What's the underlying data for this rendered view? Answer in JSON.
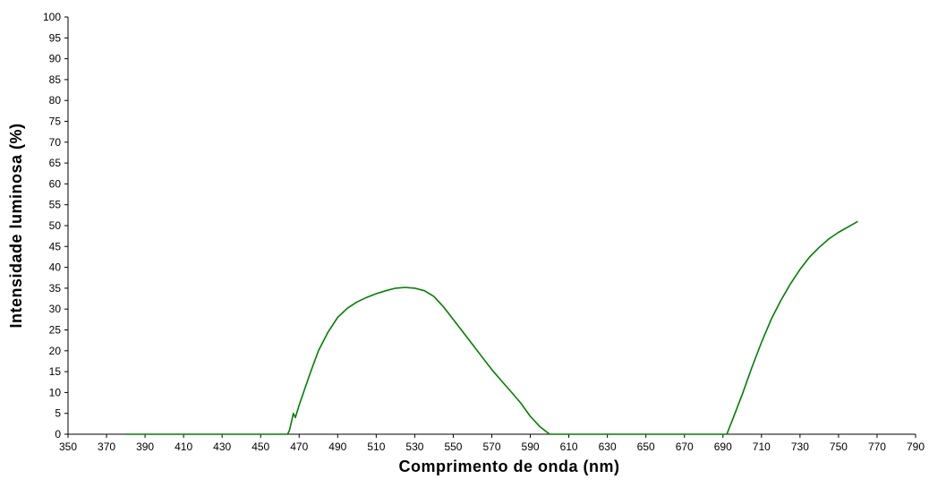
{
  "chart_data": {
    "type": "line",
    "title": "",
    "xlabel": "Comprimento de onda (nm)",
    "ylabel": "Intensidade luminosa (%)",
    "xlim": [
      350,
      790
    ],
    "ylim": [
      0,
      100
    ],
    "x_ticks": [
      350,
      370,
      390,
      410,
      430,
      450,
      470,
      490,
      510,
      530,
      550,
      570,
      590,
      610,
      630,
      650,
      670,
      690,
      710,
      730,
      750,
      770,
      790
    ],
    "y_ticks": [
      0,
      5,
      10,
      15,
      20,
      25,
      30,
      35,
      40,
      45,
      50,
      55,
      60,
      65,
      70,
      75,
      80,
      85,
      90,
      95,
      100
    ],
    "grid": false,
    "legend": "none",
    "series": [
      {
        "color": "#008000",
        "x": [
          380,
          400,
          420,
          440,
          460,
          464,
          465,
          466,
          467,
          468,
          470,
          473,
          476,
          480,
          485,
          490,
          495,
          500,
          505,
          510,
          515,
          520,
          525,
          530,
          535,
          540,
          545,
          550,
          555,
          560,
          565,
          570,
          575,
          580,
          585,
          590,
          595,
          600,
          610,
          630,
          650,
          670,
          690,
          692,
          695,
          700,
          705,
          710,
          715,
          720,
          725,
          730,
          735,
          740,
          745,
          750,
          755,
          760
        ],
        "y": [
          0,
          0,
          0,
          0,
          0,
          0,
          1,
          3,
          5,
          4,
          7,
          11,
          15,
          20,
          24.5,
          28,
          30.2,
          31.7,
          32.8,
          33.7,
          34.4,
          35,
          35.2,
          35,
          34.4,
          33,
          30.5,
          27.5,
          24.5,
          21.5,
          18.5,
          15.5,
          12.8,
          10.2,
          7.5,
          4.3,
          1.8,
          0,
          0,
          0,
          0,
          0,
          0,
          0,
          3.5,
          9.5,
          16,
          22,
          27.5,
          32,
          36,
          39.5,
          42.5,
          44.8,
          46.8,
          48.4,
          49.7,
          51
        ]
      }
    ]
  }
}
